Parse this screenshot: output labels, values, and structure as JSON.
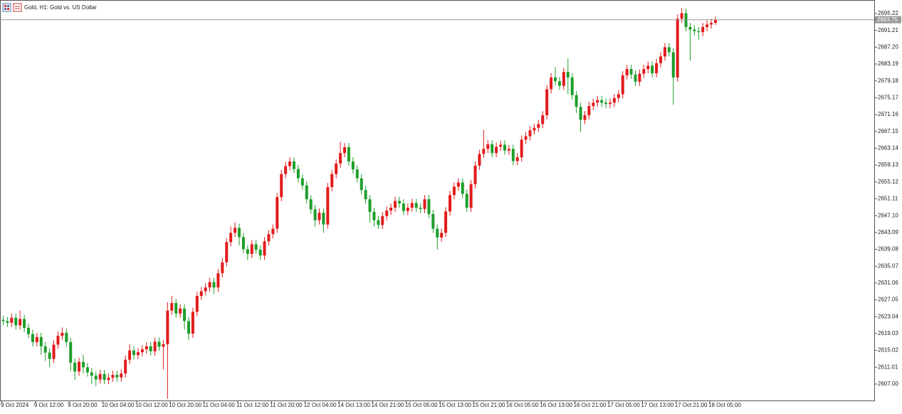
{
  "chart_data": {
    "type": "candlestick",
    "title": "Gold, H1:  Gold vs. US Dollar",
    "up_color": "#e31b1b",
    "down_color": "#1e9e2a",
    "last_price": 2693.75,
    "ylim": [
      2603.1,
      2698.44
    ],
    "yticks": [
      {
        "value": 2607,
        "label": "2607.00"
      },
      2611.01,
      2615.02,
      2619.03,
      2623.04,
      2627.05,
      2631.06,
      2635.07,
      2639.08,
      2643.09,
      {
        "value": 2647.1,
        "label": "2647.10"
      },
      2651.11,
      2655.12,
      2659.13,
      2663.14,
      2667.15,
      2671.16,
      2675.17,
      2679.18,
      2683.19,
      {
        "value": 2687.2,
        "label": "2687.20"
      },
      2691.21,
      2695.22
    ],
    "categories": [
      "9 Oct 2024",
      null,
      null,
      null,
      null,
      null,
      null,
      null,
      "9 Oct 12:00",
      null,
      null,
      null,
      null,
      null,
      null,
      null,
      "9 Oct 20:00",
      null,
      null,
      null,
      null,
      null,
      null,
      null,
      "10 Oct 04:00",
      null,
      null,
      null,
      null,
      null,
      null,
      null,
      "10 Oct 12:00",
      null,
      null,
      null,
      null,
      null,
      null,
      null,
      "10 Oct 20:00",
      null,
      null,
      null,
      null,
      null,
      null,
      null,
      "11 Oct 04:00",
      null,
      null,
      null,
      null,
      null,
      null,
      null,
      "11 Oct 12:00",
      null,
      null,
      null,
      null,
      null,
      null,
      null,
      "11 Oct 20:00",
      null,
      null,
      null,
      null,
      null,
      null,
      null,
      "12 Oct 04:00",
      null,
      null,
      null,
      null,
      null,
      null,
      null,
      "14 Oct 13:00",
      null,
      null,
      null,
      null,
      null,
      null,
      null,
      "14 Oct 21:00",
      null,
      null,
      null,
      null,
      null,
      null,
      null,
      "15 Oct 05:00",
      null,
      null,
      null,
      null,
      null,
      null,
      null,
      "15 Oct 13:00",
      null,
      null,
      null,
      null,
      null,
      null,
      null,
      "15 Oct 21:00",
      null,
      null,
      null,
      null,
      null,
      null,
      null,
      "16 Oct 05:00",
      null,
      null,
      null,
      null,
      null,
      null,
      null,
      "16 Oct 13:00",
      null,
      null,
      null,
      null,
      null,
      null,
      null,
      "16 Oct 21:00",
      null,
      null,
      null,
      null,
      null,
      null,
      null,
      "17 Oct 05:00",
      null,
      null,
      null,
      null,
      null,
      null,
      null,
      "17 Oct 13:00",
      null,
      null,
      null,
      null,
      null,
      null,
      null,
      "17 Oct 21:00",
      null,
      null,
      null,
      null,
      null,
      null,
      null,
      "18 Oct 05:00",
      null
    ],
    "open": [
      2622.3,
      2622.0,
      2621.6,
      2622.8,
      2621.0,
      2622.5,
      2620.4,
      2618.9,
      2617.0,
      2618.2,
      2616.0,
      2614.5,
      2613.0,
      2616.4,
      2618.5,
      2619.2,
      2617.0,
      2612.1,
      2610.0,
      2612.3,
      2611.0,
      2609.8,
      2609.0,
      2608.1,
      2609.4,
      2608.0,
      2608.5,
      2609.2,
      2608.6,
      2609.5,
      2612.8,
      2615.0,
      2613.9,
      2614.6,
      2615.3,
      2616.0,
      2614.8,
      2617.1,
      2615.9,
      2616.5,
      2624.5,
      2626.3,
      2623.8,
      2625.0,
      2622.0,
      2619.0,
      2624.2,
      2628.0,
      2629.1,
      2630.0,
      2631.3,
      2630.0,
      2633.4,
      2636.0,
      2640.8,
      2643.0,
      2644.2,
      2642.0,
      2639.1,
      2638.0,
      2640.3,
      2639.0,
      2637.6,
      2641.0,
      2642.7,
      2644.0,
      2651.5,
      2657.0,
      2658.9,
      2660.0,
      2658.2,
      2656.0,
      2654.3,
      2651.0,
      2648.6,
      2646.0,
      2647.8,
      2645.0,
      2653.9,
      2657.0,
      2659.5,
      2662.0,
      2663.4,
      2660.0,
      2658.1,
      2656.0,
      2653.2,
      2651.0,
      2648.0,
      2646.0,
      2644.9,
      2647.0,
      2648.3,
      2649.0,
      2650.6,
      2650.0,
      2648.2,
      2649.0,
      2650.1,
      2649.0,
      2648.7,
      2651.0,
      2647.5,
      2644.0,
      2641.9,
      2643.0,
      2648.1,
      2652.0,
      2654.0,
      2655.0,
      2652.3,
      2649.0,
      2654.6,
      2659.0,
      2661.8,
      2663.0,
      2664.1,
      2662.0,
      2663.5,
      2664.0,
      2662.6,
      2663.0,
      2660.1,
      2661.0,
      2665.2,
      2666.0,
      2667.4,
      2668.0,
      2668.9,
      2671.0,
      2677.2,
      2680.0,
      2679.1,
      2678.0,
      2681.3,
      2680.0,
      2675.8,
      2673.0,
      2669.9,
      2671.0,
      2673.2,
      2674.0,
      2674.6,
      2674.0,
      2673.7,
      2674.0,
      2675.1,
      2676.0,
      2680.5,
      2682.0,
      2680.7,
      2679.0,
      2680.9,
      2682.0,
      2682.8,
      2681.0,
      2683.4,
      2685.0,
      2687.2,
      2686.0,
      2680.0,
      2694.0,
      2695.3,
      2692.0,
      2691.4,
      2691.0,
      2690.8,
      2692.0,
      2692.6,
      2693.0
    ],
    "high": [
      2623.3,
      2623.0,
      2623.8,
      2623.8,
      2624.5,
      2623.5,
      2621.4,
      2619.9,
      2619.2,
      2619.2,
      2617.0,
      2615.5,
      2617.4,
      2619.5,
      2620.5,
      2620.2,
      2618.0,
      2613.1,
      2613.3,
      2614.0,
      2612.0,
      2610.8,
      2610.0,
      2610.4,
      2610.4,
      2609.5,
      2610.2,
      2610.2,
      2610.5,
      2613.8,
      2616.5,
      2616.0,
      2615.6,
      2616.3,
      2617.0,
      2617.0,
      2618.1,
      2618.1,
      2617.5,
      2626.5,
      2628.0,
      2627.3,
      2626.0,
      2626.0,
      2623.0,
      2625.2,
      2629.0,
      2630.1,
      2631.0,
      2632.3,
      2632.3,
      2634.4,
      2637.0,
      2641.8,
      2644.5,
      2645.5,
      2645.2,
      2643.0,
      2640.1,
      2641.3,
      2641.3,
      2640.0,
      2642.0,
      2643.7,
      2645.0,
      2652.5,
      2658.0,
      2659.9,
      2661.0,
      2661.0,
      2659.2,
      2657.0,
      2655.3,
      2652.0,
      2649.6,
      2648.8,
      2648.8,
      2654.9,
      2658.0,
      2660.5,
      2664.7,
      2664.4,
      2664.4,
      2661.0,
      2659.1,
      2657.0,
      2654.2,
      2652.0,
      2649.0,
      2647.0,
      2648.0,
      2649.3,
      2650.0,
      2651.6,
      2651.6,
      2651.0,
      2650.0,
      2651.1,
      2651.1,
      2650.0,
      2652.0,
      2652.0,
      2648.5,
      2645.0,
      2644.0,
      2649.1,
      2653.0,
      2655.0,
      2656.0,
      2656.0,
      2653.3,
      2655.6,
      2660.0,
      2662.8,
      2667.5,
      2665.1,
      2665.1,
      2664.5,
      2665.0,
      2665.0,
      2664.0,
      2664.0,
      2662.0,
      2666.2,
      2667.0,
      2668.4,
      2669.0,
      2669.9,
      2672.0,
      2678.2,
      2681.0,
      2682.5,
      2680.1,
      2682.3,
      2684.5,
      2681.0,
      2676.8,
      2674.0,
      2672.0,
      2674.2,
      2675.0,
      2675.6,
      2675.6,
      2675.0,
      2675.0,
      2676.1,
      2677.0,
      2681.5,
      2683.0,
      2683.0,
      2681.7,
      2681.9,
      2683.0,
      2683.8,
      2683.8,
      2684.4,
      2686.0,
      2688.2,
      2688.2,
      2687.0,
      2695.0,
      2696.5,
      2696.3,
      2693.0,
      2692.4,
      2692.0,
      2693.0,
      2693.6,
      2694.0,
      2694.5
    ],
    "low": [
      2621.0,
      2620.6,
      2620.6,
      2620.0,
      2620.0,
      2619.4,
      2617.9,
      2616.0,
      2616.0,
      2614.0,
      2612.5,
      2611.0,
      2612.0,
      2615.4,
      2617.5,
      2616.0,
      2610.1,
      2608.0,
      2609.0,
      2609.5,
      2608.8,
      2607.0,
      2606.5,
      2607.1,
      2607.0,
      2607.0,
      2607.5,
      2607.6,
      2607.6,
      2608.5,
      2611.8,
      2612.9,
      2612.9,
      2613.6,
      2614.3,
      2613.8,
      2613.8,
      2614.9,
      2610.5,
      2603.5,
      2623.5,
      2622.8,
      2622.8,
      2620.0,
      2617.5,
      2618.0,
      2623.2,
      2627.0,
      2628.1,
      2629.0,
      2628.5,
      2629.0,
      2632.4,
      2635.0,
      2639.8,
      2642.0,
      2640.0,
      2638.1,
      2636.5,
      2637.0,
      2638.0,
      2636.6,
      2636.6,
      2640.0,
      2641.7,
      2643.0,
      2650.5,
      2656.0,
      2657.9,
      2657.2,
      2655.0,
      2653.3,
      2650.0,
      2647.6,
      2644.5,
      2645.0,
      2643.0,
      2644.0,
      2652.9,
      2656.0,
      2658.5,
      2661.0,
      2659.0,
      2657.1,
      2655.0,
      2652.2,
      2650.0,
      2645.5,
      2644.5,
      2643.9,
      2643.9,
      2646.0,
      2647.3,
      2648.0,
      2649.0,
      2647.2,
      2647.2,
      2648.0,
      2648.0,
      2647.7,
      2647.7,
      2646.5,
      2643.0,
      2639.0,
      2640.9,
      2642.0,
      2647.1,
      2651.0,
      2653.0,
      2651.3,
      2648.0,
      2648.0,
      2653.6,
      2658.0,
      2660.8,
      2662.0,
      2661.0,
      2661.0,
      2662.5,
      2661.6,
      2661.6,
      2659.1,
      2659.1,
      2660.0,
      2664.2,
      2665.0,
      2666.4,
      2667.0,
      2667.9,
      2670.0,
      2676.2,
      2678.1,
      2677.0,
      2677.0,
      2676.0,
      2674.8,
      2671.5,
      2667.0,
      2668.9,
      2670.0,
      2672.2,
      2673.0,
      2673.0,
      2672.7,
      2672.7,
      2673.0,
      2674.1,
      2675.0,
      2679.5,
      2679.7,
      2678.0,
      2678.0,
      2679.9,
      2681.0,
      2680.0,
      2680.0,
      2682.4,
      2684.0,
      2685.0,
      2673.5,
      2679.0,
      2693.0,
      2691.0,
      2684.0,
      2690.0,
      2689.0,
      2689.8,
      2691.0,
      2691.6,
      2692.5
    ],
    "close": [
      2622.0,
      2621.6,
      2622.8,
      2621.0,
      2622.5,
      2620.4,
      2618.9,
      2617.0,
      2618.2,
      2616.0,
      2614.5,
      2613.0,
      2616.4,
      2618.5,
      2619.2,
      2617.0,
      2612.1,
      2610.0,
      2612.3,
      2611.0,
      2609.8,
      2609.0,
      2608.1,
      2609.4,
      2608.0,
      2608.5,
      2609.2,
      2608.6,
      2609.5,
      2612.8,
      2615.0,
      2613.9,
      2614.6,
      2615.3,
      2616.0,
      2614.8,
      2617.1,
      2615.9,
      2616.5,
      2624.5,
      2626.3,
      2623.8,
      2625.0,
      2622.0,
      2619.0,
      2624.2,
      2628.0,
      2629.1,
      2630.0,
      2631.3,
      2630.0,
      2633.4,
      2636.0,
      2640.8,
      2643.0,
      2644.2,
      2642.0,
      2639.1,
      2638.0,
      2640.3,
      2639.0,
      2637.6,
      2641.0,
      2642.7,
      2644.0,
      2651.5,
      2657.0,
      2658.9,
      2660.0,
      2658.2,
      2656.0,
      2654.3,
      2651.0,
      2648.6,
      2646.0,
      2647.8,
      2645.0,
      2653.9,
      2657.0,
      2659.5,
      2662.0,
      2663.4,
      2660.0,
      2658.1,
      2656.0,
      2653.2,
      2651.0,
      2648.0,
      2646.0,
      2644.9,
      2647.0,
      2648.3,
      2649.0,
      2650.6,
      2650.0,
      2648.2,
      2649.0,
      2650.1,
      2649.0,
      2648.7,
      2651.0,
      2647.5,
      2644.0,
      2641.9,
      2643.0,
      2648.1,
      2652.0,
      2654.0,
      2655.0,
      2652.3,
      2649.0,
      2654.6,
      2659.0,
      2661.8,
      2663.0,
      2664.1,
      2662.0,
      2663.5,
      2664.0,
      2662.6,
      2663.0,
      2660.1,
      2661.0,
      2665.2,
      2666.0,
      2667.4,
      2668.0,
      2668.9,
      2671.0,
      2677.2,
      2680.0,
      2679.1,
      2678.0,
      2681.3,
      2680.0,
      2675.8,
      2673.0,
      2669.9,
      2671.0,
      2673.2,
      2674.0,
      2674.6,
      2674.0,
      2673.7,
      2674.0,
      2675.1,
      2676.0,
      2680.5,
      2682.0,
      2680.7,
      2679.0,
      2680.9,
      2682.0,
      2682.8,
      2681.0,
      2683.4,
      2685.0,
      2687.2,
      2686.0,
      2680.0,
      2694.0,
      2695.3,
      2692.0,
      2691.4,
      2691.0,
      2690.8,
      2692.0,
      2692.6,
      2693.0,
      2693.75
    ]
  }
}
